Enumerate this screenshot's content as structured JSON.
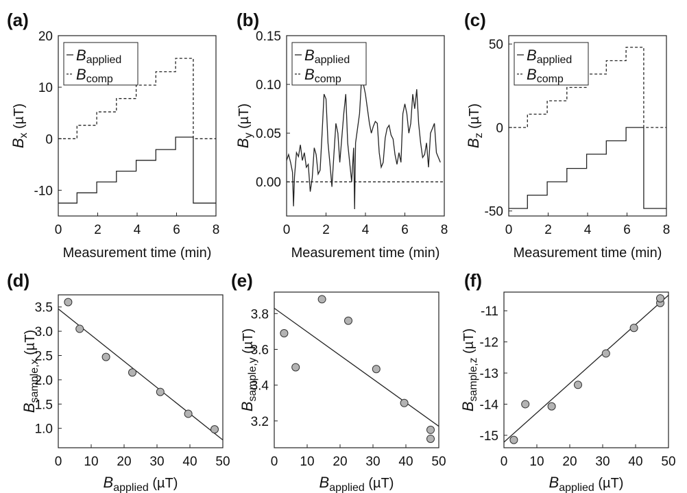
{
  "figure": {
    "panels": [
      {
        "key": "a",
        "label": "(a)",
        "legend": true,
        "ylabel_main": "B",
        "ylabel_sub": "x",
        "ylabel_unit": " (µT)",
        "xlabel": "Measurement time (min)"
      },
      {
        "key": "b",
        "label": "(b)",
        "legend": true,
        "ylabel_main": "B",
        "ylabel_sub": "y",
        "ylabel_unit": " (µT)",
        "xlabel": "Measurement time (min)"
      },
      {
        "key": "c",
        "label": "(c)",
        "legend": true,
        "ylabel_main": "B",
        "ylabel_sub": "z",
        "ylabel_unit": " (µT)",
        "xlabel": "Measurement time (min)"
      },
      {
        "key": "d",
        "label": "(d)",
        "legend": false,
        "ylabel_main": "B",
        "ylabel_sub": "sample,x",
        "ylabel_unit": " (µT)",
        "xlabel_main": "B",
        "xlabel_sub": "applied",
        "xlabel_unit": " (µT)"
      },
      {
        "key": "e",
        "label": "(e)",
        "legend": false,
        "ylabel_main": "B",
        "ylabel_sub": "sample,y",
        "ylabel_unit": " (µT)",
        "xlabel_main": "B",
        "xlabel_sub": "applied",
        "xlabel_unit": " (µT)"
      },
      {
        "key": "f",
        "label": "(f)",
        "legend": false,
        "ylabel_main": "B",
        "ylabel_sub": "sample,z",
        "ylabel_unit": " (µT)",
        "xlabel_main": "B",
        "xlabel_sub": "applied",
        "xlabel_unit": " (µT)"
      }
    ],
    "legend": {
      "applied": {
        "main": "B",
        "sub": "applied"
      },
      "comp": {
        "main": "B",
        "sub": "comp"
      }
    },
    "colors": {
      "line": "#222222",
      "marker_fill": "#b3b3b3",
      "marker_stroke": "#333333"
    }
  },
  "chart_data": [
    {
      "panel": "a",
      "type": "line",
      "xlabel": "Measurement time (min)",
      "ylabel": "B_x (µT)",
      "xlim": [
        0,
        8
      ],
      "ylim": [
        -15,
        20
      ],
      "xticks": [
        0,
        2,
        4,
        6,
        8
      ],
      "yticks": [
        -10,
        0,
        10,
        20
      ],
      "series": [
        {
          "name": "B_applied",
          "style": "solid",
          "x": [
            0,
            0.95,
            0.95,
            1.95,
            1.95,
            2.95,
            2.95,
            3.95,
            3.95,
            4.95,
            4.95,
            5.95,
            5.95,
            6.85,
            6.85,
            8
          ],
          "y": [
            -12.5,
            -12.5,
            -10.5,
            -10.5,
            -8.4,
            -8.4,
            -6.3,
            -6.3,
            -4.2,
            -4.2,
            -2.1,
            -2.1,
            0.3,
            0.3,
            -12.5,
            -12.5
          ]
        },
        {
          "name": "B_comp",
          "style": "dashed",
          "x": [
            0,
            0.95,
            0.95,
            1.95,
            1.95,
            2.95,
            2.95,
            3.95,
            3.95,
            4.95,
            4.95,
            5.95,
            5.95,
            6.85,
            6.85,
            8
          ],
          "y": [
            0,
            0,
            2.6,
            2.6,
            5.2,
            5.2,
            7.8,
            7.8,
            10.4,
            10.4,
            13,
            13,
            15.6,
            15.6,
            0,
            0
          ]
        }
      ]
    },
    {
      "panel": "b",
      "type": "line",
      "xlabel": "Measurement time (min)",
      "ylabel": "B_y (µT)",
      "xlim": [
        0,
        8
      ],
      "ylim": [
        -0.035,
        0.15
      ],
      "xticks": [
        0,
        2,
        4,
        6,
        8
      ],
      "yticks": [
        0,
        0.05,
        0.1,
        0.15
      ],
      "series": [
        {
          "name": "B_applied",
          "style": "solid",
          "x": [
            0,
            0.1,
            0.2,
            0.3,
            0.35,
            0.4,
            0.5,
            0.6,
            0.7,
            0.8,
            0.9,
            1.0,
            1.1,
            1.2,
            1.3,
            1.4,
            1.5,
            1.6,
            1.7,
            1.8,
            1.9,
            2.0,
            2.1,
            2.2,
            2.3,
            2.4,
            2.5,
            2.6,
            2.7,
            2.8,
            2.9,
            3.0,
            3.1,
            3.2,
            3.3,
            3.4,
            3.45,
            3.5,
            3.6,
            3.7,
            3.8,
            3.9,
            4.0,
            4.1,
            4.2,
            4.3,
            4.4,
            4.5,
            4.6,
            4.7,
            4.8,
            4.9,
            5.0,
            5.1,
            5.2,
            5.3,
            5.4,
            5.5,
            5.6,
            5.7,
            5.8,
            5.9,
            6.0,
            6.1,
            6.2,
            6.3,
            6.4,
            6.5,
            6.6,
            6.7,
            6.8,
            6.9,
            7.0,
            7.1,
            7.2,
            7.3,
            7.4,
            7.5,
            7.6,
            7.7,
            7.8
          ],
          "y": [
            0.022,
            0.028,
            0.02,
            0.01,
            -0.025,
            0.005,
            0.03,
            0.026,
            0.038,
            0.022,
            0.03,
            0.015,
            0.018,
            -0.01,
            0.004,
            0.035,
            0.028,
            0.008,
            0.012,
            0.05,
            0.09,
            0.085,
            0.04,
            0.018,
            -0.005,
            0.028,
            0.06,
            0.05,
            0.02,
            0.045,
            0.07,
            0.09,
            0.04,
            0.02,
            0.0,
            0.035,
            -0.028,
            0.04,
            0.055,
            0.07,
            0.105,
            0.1,
            0.09,
            0.075,
            0.06,
            0.05,
            0.057,
            0.062,
            0.06,
            0.03,
            0.015,
            0.02,
            0.045,
            0.055,
            0.058,
            0.048,
            0.044,
            0.028,
            0.018,
            0.03,
            0.02,
            0.07,
            0.08,
            0.07,
            0.05,
            0.06,
            0.09,
            0.075,
            0.095,
            0.06,
            0.04,
            0.025,
            0.028,
            0.04,
            0.015,
            0.05,
            0.055,
            0.06,
            0.03,
            0.025,
            0.02
          ]
        },
        {
          "name": "B_comp",
          "style": "dashed",
          "x": [
            0,
            8
          ],
          "y": [
            0,
            0
          ]
        }
      ]
    },
    {
      "panel": "c",
      "type": "line",
      "xlabel": "Measurement time (min)",
      "ylabel": "B_z (µT)",
      "xlim": [
        0,
        8
      ],
      "ylim": [
        -53,
        55
      ],
      "xticks": [
        0,
        2,
        4,
        6,
        8
      ],
      "yticks": [
        -50,
        0,
        50
      ],
      "series": [
        {
          "name": "B_applied",
          "style": "solid",
          "x": [
            0,
            0.95,
            0.95,
            1.95,
            1.95,
            2.95,
            2.95,
            3.95,
            3.95,
            4.95,
            4.95,
            5.95,
            5.95,
            6.85,
            6.85,
            8
          ],
          "y": [
            -48.5,
            -48.5,
            -40.5,
            -40.5,
            -32.5,
            -32.5,
            -24.5,
            -24.5,
            -16,
            -16,
            -8,
            -8,
            0,
            0,
            -48.5,
            -48.5
          ]
        },
        {
          "name": "B_comp",
          "style": "dashed",
          "x": [
            0,
            0.95,
            0.95,
            1.95,
            1.95,
            2.95,
            2.95,
            3.95,
            3.95,
            4.95,
            4.95,
            5.95,
            5.95,
            6.85,
            6.85,
            8
          ],
          "y": [
            0,
            0,
            8,
            8,
            16,
            16,
            24,
            24,
            32,
            32,
            40,
            40,
            48,
            48,
            0,
            0
          ]
        }
      ]
    },
    {
      "panel": "d",
      "type": "scatter",
      "xlabel": "B_applied (µT)",
      "ylabel": "B_sample,x (µT)",
      "xlim": [
        0,
        50
      ],
      "ylim": [
        0.6,
        3.75
      ],
      "xticks": [
        0,
        10,
        20,
        30,
        40,
        50
      ],
      "yticks": [
        1.0,
        1.5,
        2.0,
        2.5,
        3.0,
        3.5
      ],
      "points": {
        "x": [
          3,
          6.5,
          14.5,
          22.5,
          31,
          39.5,
          47.5
        ],
        "y": [
          3.6,
          3.05,
          2.47,
          2.15,
          1.75,
          1.3,
          0.98
        ]
      },
      "fit": {
        "x": [
          0,
          50
        ],
        "y": [
          3.46,
          0.76
        ]
      }
    },
    {
      "panel": "e",
      "type": "scatter",
      "xlabel": "B_applied (µT)",
      "ylabel": "B_sample,y (µT)",
      "xlim": [
        0,
        50
      ],
      "ylim": [
        3.05,
        3.92
      ],
      "xticks": [
        0,
        10,
        20,
        30,
        40,
        50
      ],
      "yticks": [
        3.2,
        3.4,
        3.6,
        3.8
      ],
      "points": {
        "x": [
          3,
          6.5,
          14.5,
          22.5,
          31,
          39.5,
          47.5,
          47.5
        ],
        "y": [
          3.69,
          3.5,
          3.88,
          3.76,
          3.49,
          3.3,
          3.15,
          3.1
        ]
      },
      "fit": {
        "x": [
          0,
          50
        ],
        "y": [
          3.83,
          3.17
        ]
      }
    },
    {
      "panel": "f",
      "type": "scatter",
      "xlabel": "B_applied (µT)",
      "ylabel": "B_sample,z (µT)",
      "xlim": [
        0,
        50
      ],
      "ylim": [
        -15.4,
        -10.4
      ],
      "xticks": [
        0,
        10,
        20,
        30,
        40,
        50
      ],
      "yticks": [
        -15,
        -14,
        -13,
        -12,
        -11
      ],
      "points": {
        "x": [
          3,
          6.5,
          14.5,
          22.5,
          31,
          39.5,
          47.5,
          47.5
        ],
        "y": [
          -15.15,
          -14.0,
          -14.07,
          -13.38,
          -12.37,
          -11.55,
          -10.75,
          -10.6
        ]
      },
      "fit": {
        "x": [
          0,
          50
        ],
        "y": [
          -15.22,
          -10.5
        ]
      }
    }
  ]
}
